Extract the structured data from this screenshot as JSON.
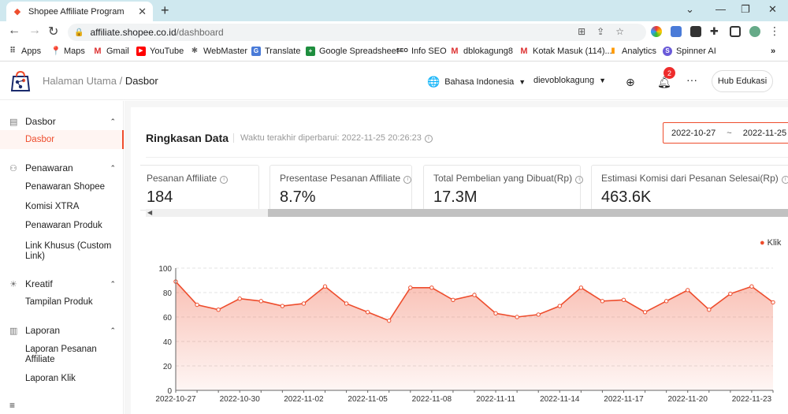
{
  "browser": {
    "tab_title": "Shopee Affiliate Program",
    "url_host": "affiliate.shopee.co.id",
    "url_path": "/dashboard",
    "bookmarks": [
      "Apps",
      "Maps",
      "Gmail",
      "YouTube",
      "WebMaster",
      "Translate",
      "Google Spreadsheet",
      "Info SEO",
      "dblokagung8",
      "Kotak Masuk (114)...",
      "Analytics",
      "Spinner AI"
    ]
  },
  "header": {
    "breadcrumb_home": "Halaman Utama",
    "breadcrumb_sep": "/",
    "breadcrumb_current": "Dasbor",
    "language": "Bahasa Indonesia",
    "username": "dievoblokagung",
    "notification_count": "2",
    "hub_button": "Hub Edukasi"
  },
  "sidebar": {
    "groups": [
      {
        "label": "Dasbor",
        "items": [
          "Dasbor"
        ]
      },
      {
        "label": "Penawaran",
        "items": [
          "Penawaran Shopee",
          "Komisi XTRA",
          "Penawaran Produk",
          "Link Khusus (Custom Link)"
        ]
      },
      {
        "label": "Kreatif",
        "items": [
          "Tampilan Produk"
        ]
      },
      {
        "label": "Laporan",
        "items": [
          "Laporan Pesanan Affiliate",
          "Laporan Klik"
        ]
      }
    ],
    "collapse_icon": "≡"
  },
  "summary": {
    "title": "Ringkasan Data",
    "updated": "Waktu terakhir diperbarui: 2022-11-25 20:26:23",
    "date_start": "2022-10-27",
    "date_sep": "~",
    "date_end": "2022-11-25",
    "metrics": [
      {
        "label": "Pesanan Affiliate",
        "value": "184"
      },
      {
        "label": "Presentase Pesanan Affiliate",
        "value": "8.7%"
      },
      {
        "label": "Total Pembelian yang Dibuat(Rp)",
        "value": "17.3M"
      },
      {
        "label": "Estimasi Komisi dari Pesanan Selesai(Rp)",
        "value": "463.6K"
      }
    ]
  },
  "chart_data": {
    "type": "area",
    "series": [
      {
        "name": "Klik",
        "values": [
          89,
          70,
          66,
          75,
          73,
          69,
          71,
          85,
          71,
          64,
          57,
          84,
          84,
          74,
          78,
          63,
          60,
          62,
          69,
          84,
          73,
          74,
          64,
          73,
          82,
          66,
          79,
          85,
          72
        ]
      }
    ],
    "x": [
      "2022-10-27",
      "2022-10-28",
      "2022-10-29",
      "2022-10-30",
      "2022-10-31",
      "2022-11-01",
      "2022-11-02",
      "2022-11-03",
      "2022-11-04",
      "2022-11-05",
      "2022-11-06",
      "2022-11-07",
      "2022-11-08",
      "2022-11-09",
      "2022-11-10",
      "2022-11-11",
      "2022-11-12",
      "2022-11-13",
      "2022-11-14",
      "2022-11-15",
      "2022-11-16",
      "2022-11-17",
      "2022-11-18",
      "2022-11-19",
      "2022-11-20",
      "2022-11-21",
      "2022-11-22",
      "2022-11-23",
      "2022-11-24"
    ],
    "xticks": [
      "2022-10-27",
      "2022-10-30",
      "2022-11-02",
      "2022-11-05",
      "2022-11-08",
      "2022-11-11",
      "2022-11-14",
      "2022-11-17",
      "2022-11-20",
      "2022-11-23"
    ],
    "yticks": [
      0,
      20,
      40,
      60,
      80,
      100
    ],
    "ylim": [
      0,
      100
    ],
    "legend_position": "top-right",
    "color": "#ee4d2d"
  }
}
